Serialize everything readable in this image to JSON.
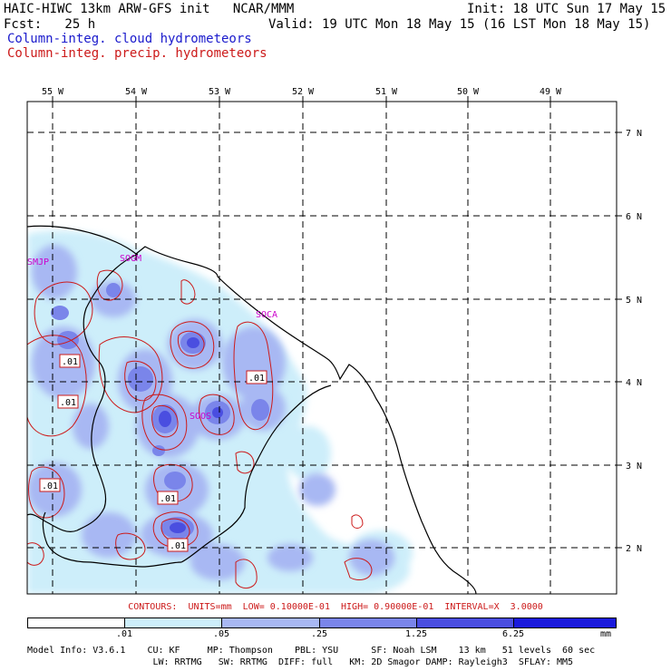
{
  "header": {
    "title": "HAIC-HIWC 13km ARW-GFS init   NCAR/MMM",
    "init": "Init: 18 UTC Sun 17 May 15",
    "fcst": "Fcst:   25 h",
    "valid": "Valid: 19 UTC Mon 18 May 15 (16 LST Mon 18 May 15)",
    "field_cloud": "Column-integ. cloud hydrometeors",
    "field_precip": "Column-integ. precip. hydrometeors"
  },
  "colors": {
    "cloud_contour": "#1a1acc",
    "precip_contour": "#cc1a1a",
    "station_label": "#cc00cc",
    "shade_levels": [
      "#ffffff",
      "#cdeefa",
      "#a8b8f3",
      "#7a85ea",
      "#4a4ee0",
      "#1a1adc"
    ]
  },
  "map": {
    "lon_labels": [
      "55 W",
      "54 W",
      "53 W",
      "52 W",
      "51 W",
      "50 W",
      "49 W"
    ],
    "lat_labels": [
      "7 N",
      "6 N",
      "5 N",
      "4 N",
      "3 N",
      "2 N"
    ],
    "stations": [
      {
        "id": "SMJP",
        "label": "SMJP"
      },
      {
        "id": "SOGM",
        "label": "SOGM"
      },
      {
        "id": "SOCA",
        "label": "SOCA"
      },
      {
        "id": "SOOS",
        "label": "SOOS"
      }
    ],
    "contour_labels": [
      ".01",
      ".01",
      ".01",
      ".01",
      ".01",
      ".01"
    ]
  },
  "legend": {
    "contours_line": "CONTOURS:  UNITS=mm  LOW= 0.10000E-01  HIGH= 0.90000E-01  INTERVAL=X  3.0000",
    "tick_labels": [
      ".01",
      ".05",
      ".25",
      "1.25",
      "6.25"
    ],
    "unit": "mm"
  },
  "model_info": {
    "line1": "Model Info: V3.6.1    CU: KF     MP: Thompson    PBL: YSU      SF: Noah LSM    13 km   51 levels  60 sec",
    "line2": "                       LW: RRTMG   SW: RRTMG  DIFF: full   KM: 2D Smagor DAMP: Rayleigh3  SFLAY: MM5"
  }
}
